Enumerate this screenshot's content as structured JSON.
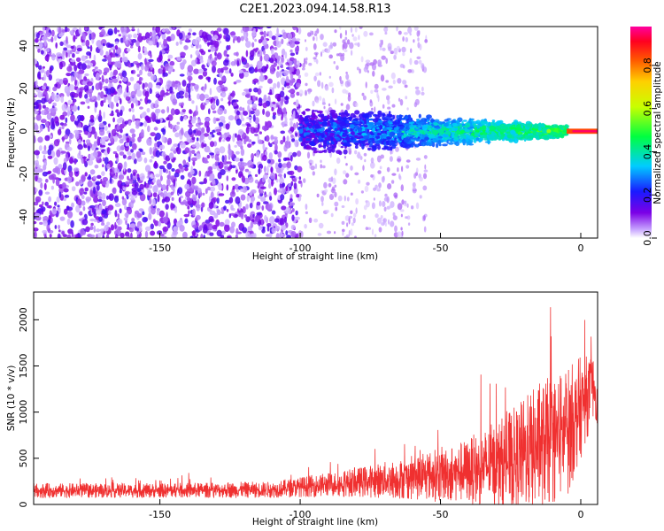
{
  "figure_title": "C2E1.2023.094.14.58.R13",
  "chart_data": [
    {
      "type": "heatmap",
      "xlabel": "Height of straight line (km)",
      "ylabel": "Frequency (Hz)",
      "xlim": [
        -195,
        6
      ],
      "ylim": [
        -50,
        49
      ],
      "xticks": [
        -150,
        -100,
        -50,
        0
      ],
      "yticks": [
        -40,
        -20,
        0,
        20,
        40
      ],
      "colorbar": {
        "label": "Normalized spectral amplitude",
        "range": [
          0,
          0.98
        ],
        "ticks": [
          0.0,
          0.2,
          0.4,
          0.6,
          0.8
        ],
        "colormap": "rainbow (violet-blue-cyan-green-yellow-orange-red-magenta)"
      },
      "description_regions": [
        {
          "x_range": [
            -195,
            -100
          ],
          "y_range": [
            -50,
            49
          ],
          "level": "low noise (0.0-0.2)"
        },
        {
          "x_range": [
            -100,
            -5
          ],
          "y_range": [
            -12,
            12
          ],
          "level": "signal band narrowing toward 0 Hz (0.1-0.6)"
        },
        {
          "x_range": [
            -5,
            6
          ],
          "y_range": [
            -1.5,
            1.5
          ],
          "level": "peak (0.8-0.98)"
        }
      ],
      "grid": false
    },
    {
      "type": "line",
      "xlabel": "Height of straight line (km)",
      "ylabel": "SNR (10 * v/v)",
      "xlim": [
        -195,
        6
      ],
      "ylim": [
        0,
        2300
      ],
      "xticks": [
        -150,
        -100,
        -50,
        0
      ],
      "yticks": [
        0,
        500,
        1000,
        1500,
        2000
      ],
      "series_color": "#f03030",
      "envelope": {
        "x": [
          -195,
          -150,
          -110,
          -100,
          -80,
          -60,
          -40,
          -25,
          -15,
          -5,
          0,
          5,
          6
        ],
        "baseline": [
          150,
          150,
          160,
          190,
          240,
          290,
          360,
          470,
          620,
          780,
          1050,
          1300,
          1000
        ],
        "spread": [
          80,
          80,
          90,
          110,
          160,
          240,
          360,
          550,
          700,
          720,
          560,
          320,
          200
        ]
      },
      "grid": false
    }
  ]
}
